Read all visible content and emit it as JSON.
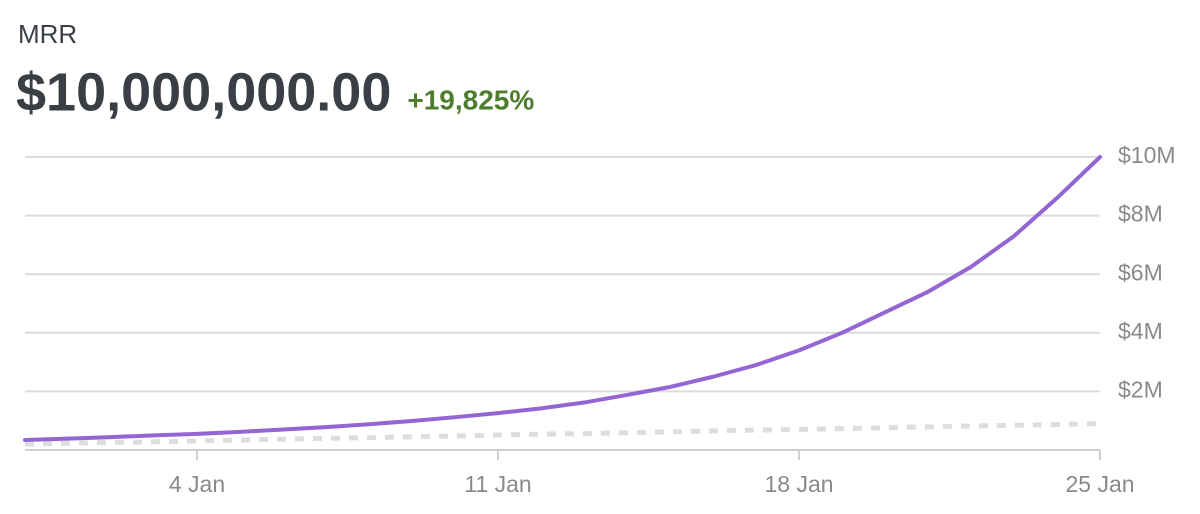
{
  "chart_data": {
    "type": "line",
    "title": "MRR",
    "headline": "$10,000,000.00",
    "change": "+19,825%",
    "x": [
      0,
      1,
      2,
      3,
      4,
      5,
      6,
      7,
      8,
      9,
      10,
      11,
      12,
      13,
      14,
      15,
      16,
      17,
      18,
      19,
      20,
      21,
      22,
      23,
      24,
      25
    ],
    "xlim": [
      0,
      25
    ],
    "xticks": [
      {
        "value": 4,
        "label": "4 Jan"
      },
      {
        "value": 11,
        "label": "11 Jan"
      },
      {
        "value": 18,
        "label": "18 Jan"
      },
      {
        "value": 25,
        "label": "25 Jan"
      }
    ],
    "ylim": [
      0,
      10000000
    ],
    "yticks": [
      {
        "value": 2000000,
        "label": "$2M"
      },
      {
        "value": 4000000,
        "label": "$4M"
      },
      {
        "value": 6000000,
        "label": "$6M"
      },
      {
        "value": 8000000,
        "label": "$8M"
      },
      {
        "value": 10000000,
        "label": "$10M"
      }
    ],
    "grid": true,
    "series": [
      {
        "color": "#9466d4",
        "style": "solid",
        "values": [
          340000,
          390000,
          440000,
          500000,
          550000,
          620000,
          700000,
          780000,
          880000,
          990000,
          1120000,
          1260000,
          1420000,
          1620000,
          1880000,
          2150000,
          2500000,
          2900000,
          3400000,
          4000000,
          4700000,
          5400000,
          6250000,
          7300000,
          8600000,
          10000000
        ]
      },
      {
        "color": "#dddddd",
        "style": "dashed",
        "values": [
          200000,
          230000,
          260000,
          280000,
          310000,
          340000,
          370000,
          400000,
          420000,
          450000,
          480000,
          510000,
          540000,
          560000,
          590000,
          620000,
          650000,
          680000,
          700000,
          730000,
          760000,
          790000,
          820000,
          840000,
          870000,
          900000
        ]
      }
    ]
  }
}
